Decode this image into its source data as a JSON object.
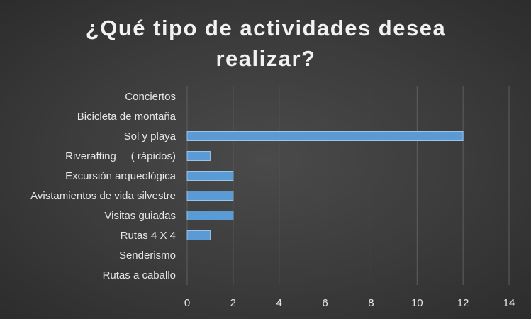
{
  "chart_data": {
    "type": "bar",
    "orientation": "horizontal",
    "title": "¿Qué tipo de actividades desea realizar?",
    "categories": [
      "Conciertos",
      "Bicicleta de montaña",
      "Sol y playa",
      "Riverafting     ( rápidos)",
      "Excursión arqueológica",
      "Avistamientos de vida silvestre",
      "Visitas guiadas",
      "Rutas 4 X 4",
      "Senderismo",
      "Rutas a caballo"
    ],
    "values": [
      0,
      0,
      12,
      1,
      2,
      2,
      2,
      1,
      0,
      0
    ],
    "xlim": [
      0,
      14
    ],
    "xticks": [
      "0",
      "2",
      "4",
      "6",
      "8",
      "10",
      "12",
      "14"
    ],
    "grid": true,
    "legend": "none",
    "colors": {
      "bar": "#5b9bd5",
      "bar_border": "#9cc3e8",
      "grid": "#5f5f5f",
      "text": "#e6e6e6",
      "background": "#404040"
    }
  }
}
